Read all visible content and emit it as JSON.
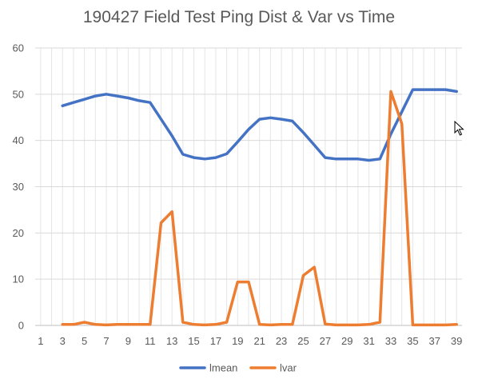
{
  "chart_data": {
    "type": "line",
    "title": "190427 Field Test Ping Dist & Var vs Time",
    "xlabel": "",
    "ylabel": "",
    "xlim": [
      1,
      39
    ],
    "ylim": [
      0,
      60
    ],
    "x_ticks": [
      1,
      3,
      5,
      7,
      9,
      11,
      13,
      15,
      17,
      19,
      21,
      23,
      25,
      27,
      29,
      31,
      33,
      35,
      37,
      39
    ],
    "y_ticks": [
      0,
      10,
      20,
      30,
      40,
      50,
      60
    ],
    "grid": true,
    "legend_position": "bottom",
    "series": [
      {
        "name": "lmean",
        "color": "#4472C4",
        "x": [
          3,
          4,
          5,
          6,
          7,
          8,
          9,
          10,
          11,
          12,
          13,
          14,
          15,
          16,
          17,
          18,
          19,
          20,
          21,
          22,
          23,
          24,
          25,
          26,
          27,
          28,
          29,
          30,
          31,
          32,
          33,
          34,
          35,
          36,
          37,
          38,
          39
        ],
        "values": [
          47.5,
          48.2,
          48.9,
          49.6,
          50,
          49.6,
          49.2,
          48.6,
          48.2,
          44.6,
          41,
          37,
          36.3,
          36,
          36.3,
          37.1,
          39.7,
          42.4,
          44.6,
          44.9,
          44.6,
          44.2,
          41.7,
          39,
          36.3,
          36,
          36,
          36,
          35.7,
          36,
          41.4,
          46.2,
          51,
          51,
          51,
          51,
          50.6
        ]
      },
      {
        "name": "lvar",
        "color": "#ED7D31",
        "x": [
          3,
          4,
          5,
          6,
          7,
          8,
          9,
          10,
          11,
          12,
          13,
          14,
          15,
          16,
          17,
          18,
          19,
          20,
          21,
          22,
          23,
          24,
          25,
          26,
          27,
          28,
          29,
          30,
          31,
          32,
          33,
          34,
          35,
          36,
          37,
          38,
          39
        ],
        "values": [
          0.2,
          0.2,
          0.7,
          0.2,
          0.1,
          0.2,
          0.2,
          0.2,
          0.2,
          22.2,
          24.6,
          0.7,
          0.2,
          0.1,
          0.2,
          0.7,
          9.4,
          9.4,
          0.2,
          0.1,
          0.2,
          0.2,
          10.8,
          12.6,
          0.3,
          0.1,
          0.1,
          0.1,
          0.2,
          0.7,
          50.6,
          43.6,
          0.1,
          0.1,
          0.1,
          0.1,
          0.2
        ]
      }
    ]
  }
}
